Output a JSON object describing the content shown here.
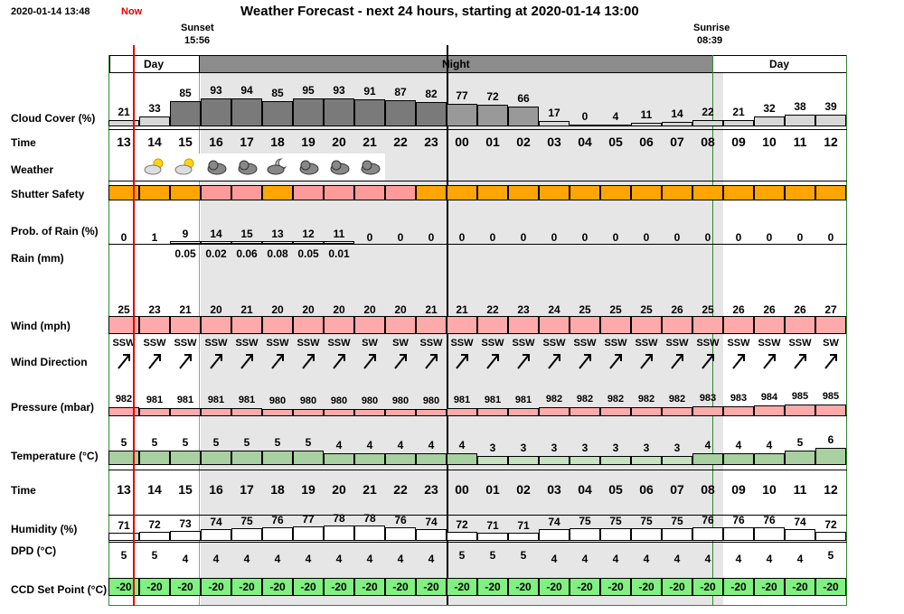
{
  "header": {
    "timestamp": "2020-01-14 13:48",
    "now_label": "Now",
    "title": "Weather Forecast - next 24 hours, starting at 2020-01-14 13:00",
    "sunset_label": "Sunset",
    "sunset_time": "15:56",
    "sunrise_label": "Sunrise",
    "sunrise_time": "08:39"
  },
  "period_labels": {
    "day": "Day",
    "night": "Night"
  },
  "row_labels": {
    "cloud_cover": "Cloud Cover (%)",
    "time": "Time",
    "weather": "Weather",
    "shutter_safety": "Shutter Safety",
    "prob_rain": "Prob. of Rain (%)",
    "rain": "Rain (mm)",
    "wind": "Wind (mph)",
    "wind_direction": "Wind Direction",
    "pressure": "Pressure (mbar)",
    "temperature": "Temperature (°C)",
    "time2": "Time",
    "humidity": "Humidity (%)",
    "dpd": "DPD (°C)",
    "ccd": "CCD Set Point (°C)"
  },
  "hours": [
    "13",
    "14",
    "15",
    "16",
    "17",
    "18",
    "19",
    "20",
    "21",
    "22",
    "23",
    "00",
    "01",
    "02",
    "03",
    "04",
    "05",
    "06",
    "07",
    "08",
    "09",
    "10",
    "11",
    "12"
  ],
  "cloud_cover": [
    21,
    33,
    85,
    93,
    94,
    85,
    95,
    93,
    91,
    87,
    82,
    77,
    72,
    66,
    17,
    0,
    4,
    11,
    14,
    22,
    21,
    32,
    38,
    39
  ],
  "weather_icons": [
    "",
    "partly-sunny-icon",
    "partly-sunny-icon",
    "cloud-icon",
    "cloud-icon",
    "partly-moon-icon",
    "cloud-icon",
    "cloud-icon",
    "cloud-icon",
    "",
    "",
    "",
    "",
    "",
    "",
    "",
    "",
    "",
    "",
    "",
    "",
    "",
    "",
    ""
  ],
  "shutter_safety": [
    "ok",
    "ok",
    "ok",
    "warn",
    "warn",
    "ok",
    "warn",
    "warn",
    "warn",
    "warn",
    "ok",
    "ok",
    "ok",
    "ok",
    "ok",
    "ok",
    "ok",
    "ok",
    "ok",
    "ok",
    "ok",
    "ok",
    "ok",
    "ok"
  ],
  "prob_rain": [
    0,
    1,
    9,
    14,
    15,
    13,
    12,
    11,
    0,
    0,
    0,
    0,
    0,
    0,
    0,
    0,
    0,
    0,
    0,
    0,
    0,
    0,
    0,
    0
  ],
  "rain": [
    "",
    "",
    "0.05",
    "0.02",
    "0.06",
    "0.08",
    "0.05",
    "0.01",
    "",
    "",
    "",
    "",
    "",
    "",
    "",
    "",
    "",
    "",
    "",
    "",
    "",
    "",
    "",
    ""
  ],
  "wind": [
    25,
    23,
    21,
    20,
    21,
    20,
    20,
    20,
    20,
    20,
    21,
    21,
    22,
    23,
    24,
    25,
    25,
    25,
    26,
    25,
    26,
    26,
    26,
    27
  ],
  "wind_direction": [
    "SSW",
    "SSW",
    "SSW",
    "SSW",
    "SSW",
    "SSW",
    "SSW",
    "SSW",
    "SW",
    "SW",
    "SSW",
    "SSW",
    "SSW",
    "SSW",
    "SSW",
    "SSW",
    "SSW",
    "SSW",
    "SSW",
    "SSW",
    "SSW",
    "SSW",
    "SSW",
    "SW"
  ],
  "pressure": [
    982,
    981,
    981,
    981,
    981,
    980,
    980,
    980,
    980,
    980,
    980,
    981,
    981,
    981,
    982,
    982,
    982,
    982,
    982,
    983,
    983,
    984,
    985,
    985
  ],
  "temperature": [
    5,
    5,
    5,
    5,
    5,
    5,
    5,
    4,
    4,
    4,
    4,
    4,
    3,
    3,
    3,
    3,
    3,
    3,
    3,
    4,
    4,
    4,
    5,
    6
  ],
  "humidity": [
    71,
    72,
    73,
    74,
    75,
    76,
    77,
    78,
    78,
    76,
    74,
    72,
    71,
    71,
    74,
    75,
    75,
    75,
    75,
    76,
    76,
    76,
    74,
    72
  ],
  "dpd": [
    5,
    5,
    4,
    4,
    4,
    4,
    4,
    4,
    4,
    4,
    4,
    5,
    5,
    5,
    4,
    4,
    4,
    4,
    4,
    4,
    4,
    4,
    4,
    5
  ],
  "ccd": [
    -20,
    -20,
    -20,
    -20,
    -20,
    -20,
    -20,
    -20,
    -20,
    -20,
    -20,
    -20,
    -20,
    -20,
    -20,
    -20,
    -20,
    -20,
    -20,
    -20,
    -20,
    -20,
    -20,
    -20
  ],
  "colors": {
    "now_marker": "#e00000",
    "night_shade": "#e6e6e6",
    "night_header": "#8c8c8c",
    "cloud_dark": "#7a7a7a",
    "shutter_ok": "#ffa500",
    "shutter_warn": "#ff9a9a",
    "wind_fill": "#ffaaaa",
    "pressure_fill": "#ffaaaa",
    "temp_fill": "#a8d0a0",
    "ccd_fill": "#80f080",
    "grid_green": "#2e8b2e"
  }
}
